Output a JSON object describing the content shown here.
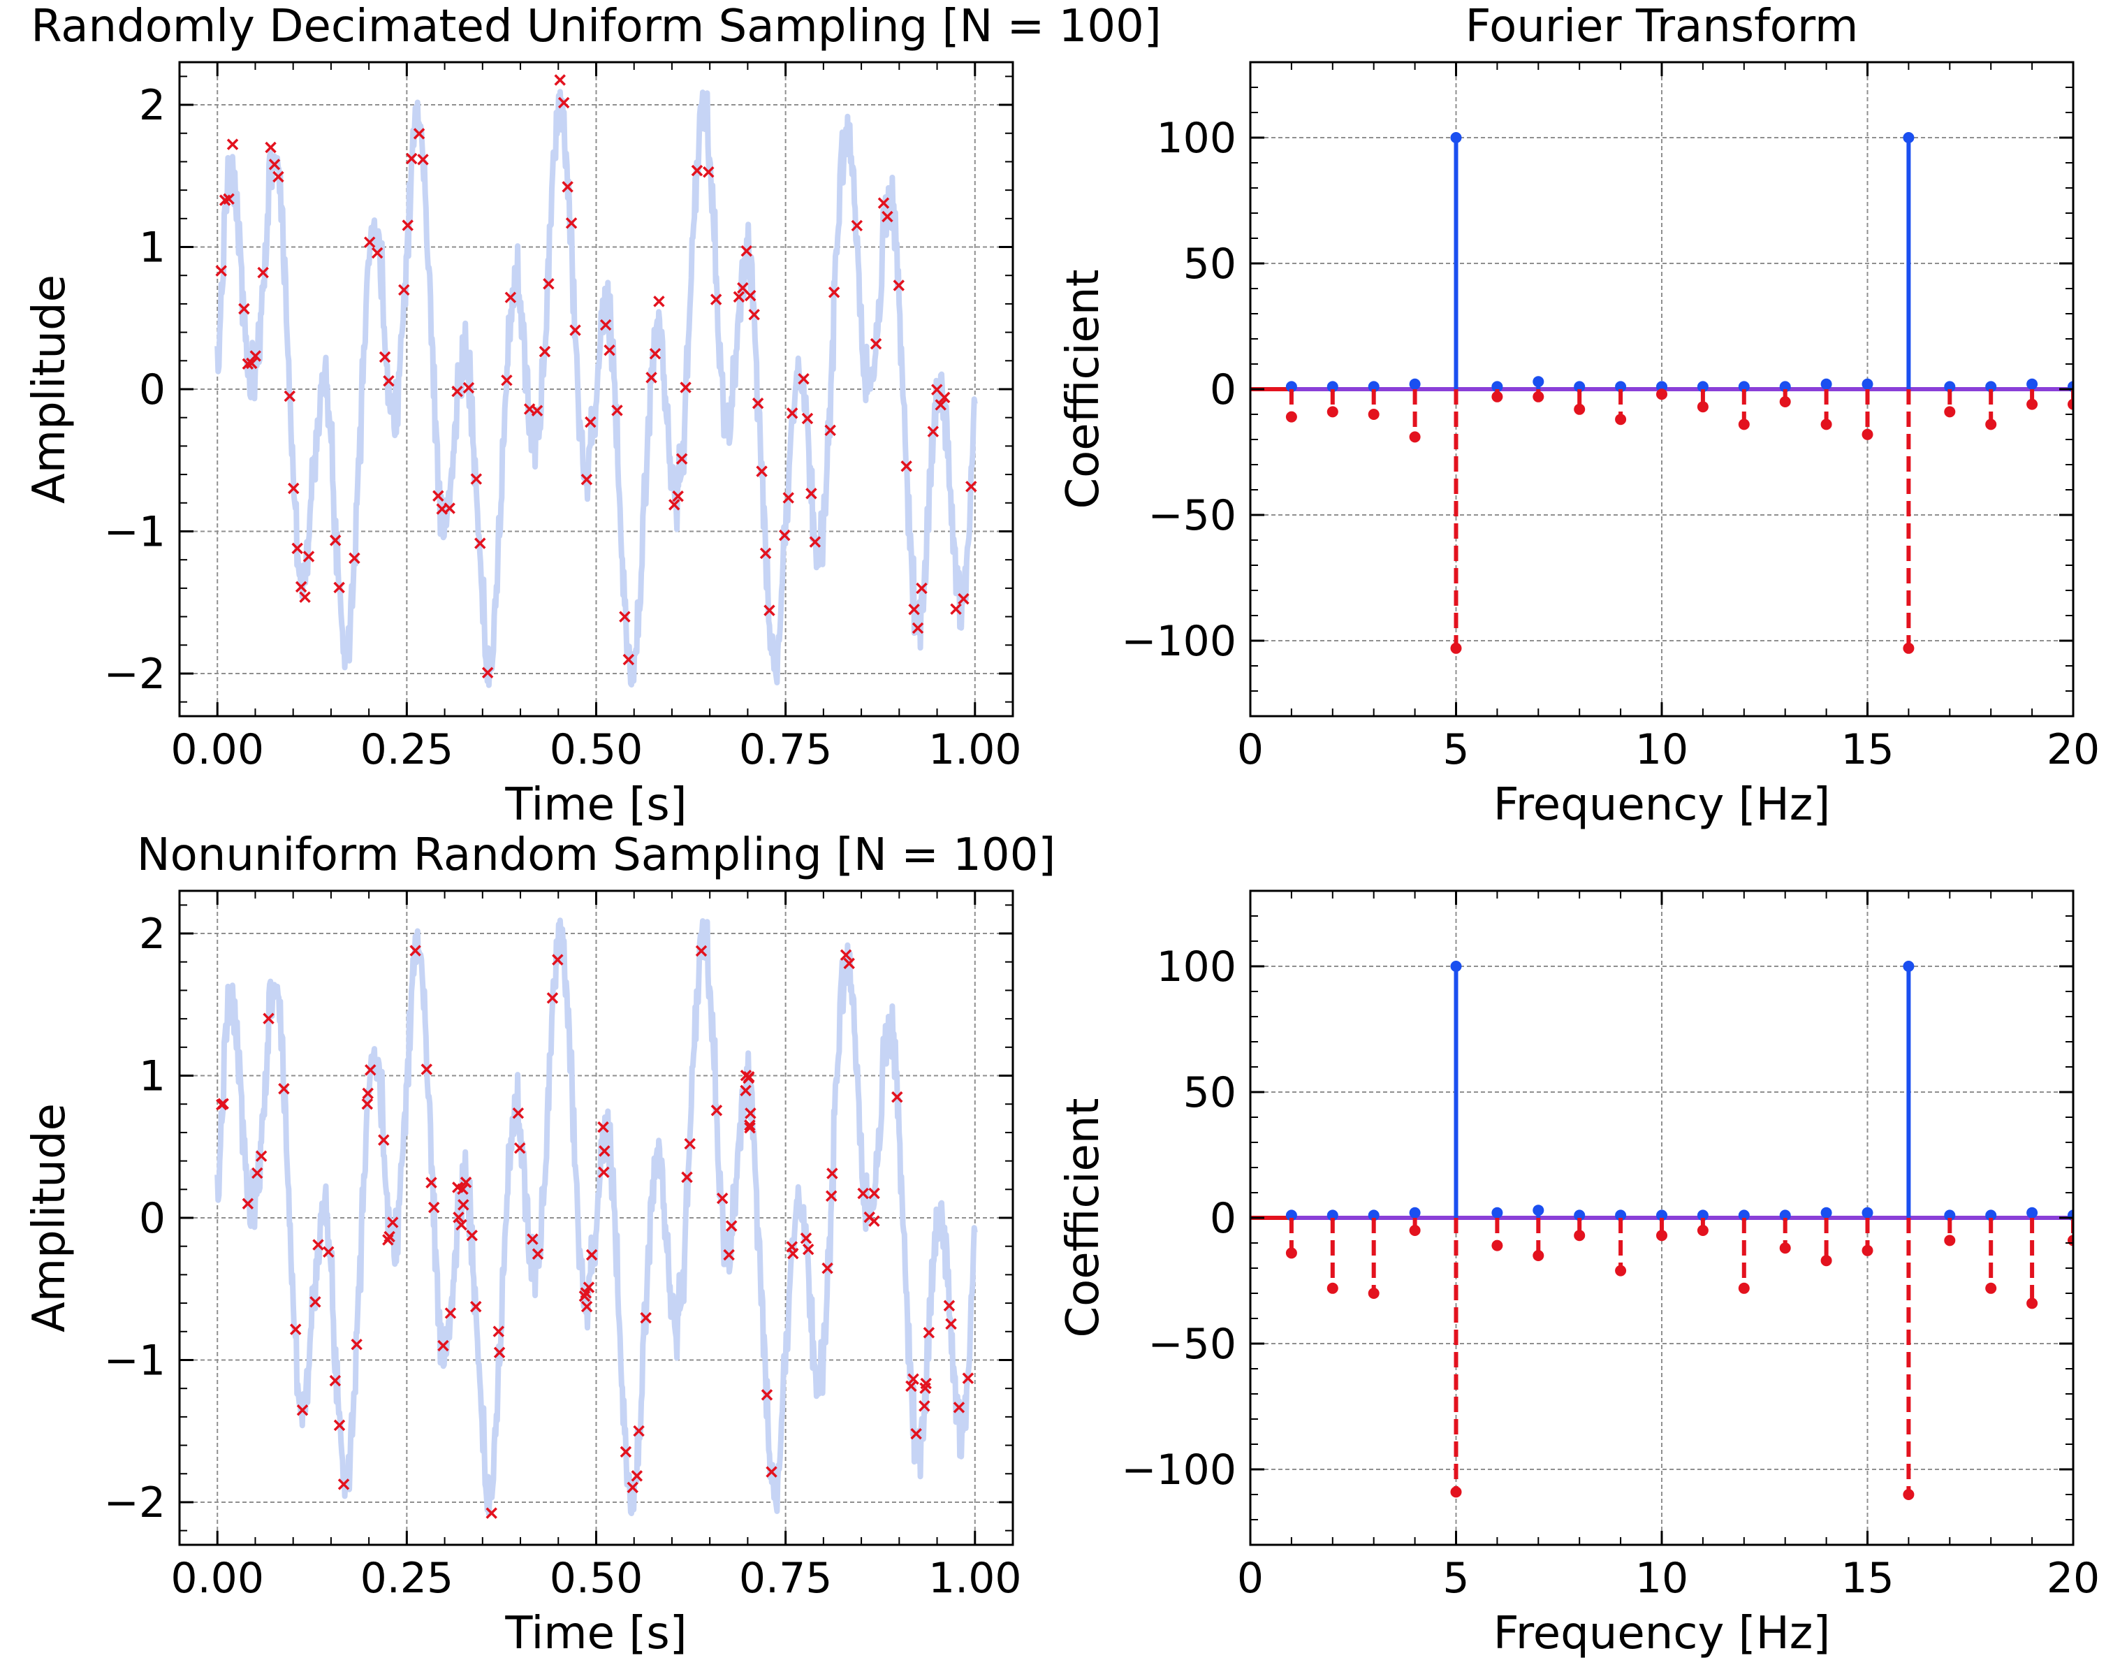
{
  "colors": {
    "signal": "#c6d4f5",
    "samples": "#e3121e",
    "positive_stem": "#1a4ff0",
    "negative_stem": "#e3121e",
    "baseline": "#8a3fd8",
    "grid": "#8f8f8f"
  },
  "chart_data": [
    {
      "type": "line",
      "title": "Randomly Decimated Uniform Sampling [N = 100]",
      "xlabel": "Time [s]",
      "ylabel": "Amplitude",
      "xlim": [
        -0.05,
        1.05
      ],
      "ylim": [
        -2.3,
        2.3
      ],
      "xticks": [
        0,
        0.25,
        0.5,
        0.75,
        1
      ],
      "xticklabels": [
        "0.00",
        "0.25",
        "0.50",
        "0.75",
        "1.00"
      ],
      "yticks": [
        -2,
        -1,
        0,
        1,
        2
      ],
      "yticklabels": [
        "−2",
        "−1",
        "0",
        "1",
        "2"
      ],
      "grid": true,
      "series": [
        {
          "kind": "curve",
          "color": "#c6d4f5",
          "signal": {
            "terms": [
              {
                "amp": 1,
                "freq": 5
              },
              {
                "amp": 1,
                "freq": 16
              }
            ],
            "noise_sd": 0.11,
            "seed": 7,
            "n": 1000,
            "xrange": [
              0,
              1
            ]
          }
        },
        {
          "kind": "markers",
          "marker": "x",
          "color": "#e3121e",
          "n_samples": 100,
          "seed": 41,
          "mode": "decimated",
          "noise_sd": 0.07
        }
      ]
    },
    {
      "type": "stem",
      "title": "Fourier Transform",
      "xlabel": "Frequency [Hz]",
      "ylabel": "Coefficient",
      "xlim": [
        0,
        20
      ],
      "ylim": [
        -130,
        130
      ],
      "xticks": [
        0,
        5,
        10,
        15,
        20
      ],
      "xticklabels": [
        "0",
        "5",
        "10",
        "15",
        "20"
      ],
      "yticks": [
        -100,
        -50,
        0,
        50,
        100
      ],
      "yticklabels": [
        "−100",
        "−50",
        "0",
        "50",
        "100"
      ],
      "grid": true,
      "series": [
        {
          "kind": "stem",
          "color": "#1a4ff0",
          "style": "solid",
          "x": [
            1,
            2,
            3,
            4,
            5,
            6,
            7,
            8,
            9,
            10,
            11,
            12,
            13,
            14,
            15,
            16,
            17,
            18,
            19,
            20
          ],
          "values": [
            1,
            1,
            1,
            2,
            100,
            1,
            3,
            1,
            1,
            1,
            1,
            1,
            1,
            2,
            2,
            100,
            1,
            1,
            2,
            1
          ]
        },
        {
          "kind": "stem",
          "color": "#e3121e",
          "style": "dashed",
          "x": [
            1,
            2,
            3,
            4,
            5,
            6,
            7,
            8,
            9,
            10,
            11,
            12,
            13,
            14,
            15,
            16,
            17,
            18,
            19,
            20
          ],
          "values": [
            -11,
            -9,
            -10,
            -19,
            -103,
            -3,
            -3,
            -8,
            -12,
            -2,
            -7,
            -14,
            -5,
            -14,
            -18,
            -103,
            -9,
            -14,
            -6,
            -6
          ]
        }
      ]
    },
    {
      "type": "line",
      "title": "Nonuniform Random Sampling [N = 100]",
      "xlabel": "Time [s]",
      "ylabel": "Amplitude",
      "xlim": [
        -0.05,
        1.05
      ],
      "ylim": [
        -2.3,
        2.3
      ],
      "xticks": [
        0,
        0.25,
        0.5,
        0.75,
        1
      ],
      "xticklabels": [
        "0.00",
        "0.25",
        "0.50",
        "0.75",
        "1.00"
      ],
      "yticks": [
        -2,
        -1,
        0,
        1,
        2
      ],
      "yticklabels": [
        "−2",
        "−1",
        "0",
        "1",
        "2"
      ],
      "grid": true,
      "series": [
        {
          "kind": "curve",
          "color": "#c6d4f5",
          "signal": {
            "terms": [
              {
                "amp": 1,
                "freq": 5
              },
              {
                "amp": 1,
                "freq": 16
              }
            ],
            "noise_sd": 0.11,
            "seed": 7,
            "n": 1000,
            "xrange": [
              0,
              1
            ]
          }
        },
        {
          "kind": "markers",
          "marker": "x",
          "color": "#e3121e",
          "n_samples": 100,
          "seed": 97,
          "mode": "random",
          "noise_sd": 0.07
        }
      ]
    },
    {
      "type": "stem",
      "title": "",
      "xlabel": "Frequency [Hz]",
      "ylabel": "Coefficient",
      "xlim": [
        0,
        20
      ],
      "ylim": [
        -130,
        130
      ],
      "xticks": [
        0,
        5,
        10,
        15,
        20
      ],
      "xticklabels": [
        "0",
        "5",
        "10",
        "15",
        "20"
      ],
      "yticks": [
        -100,
        -50,
        0,
        50,
        100
      ],
      "yticklabels": [
        "−100",
        "−50",
        "0",
        "50",
        "100"
      ],
      "grid": true,
      "series": [
        {
          "kind": "stem",
          "color": "#1a4ff0",
          "style": "solid",
          "x": [
            1,
            2,
            3,
            4,
            5,
            6,
            7,
            8,
            9,
            10,
            11,
            12,
            13,
            14,
            15,
            16,
            17,
            18,
            19,
            20
          ],
          "values": [
            1,
            1,
            1,
            2,
            100,
            2,
            3,
            1,
            1,
            1,
            1,
            1,
            1,
            2,
            2,
            100,
            1,
            1,
            2,
            1
          ]
        },
        {
          "kind": "stem",
          "color": "#e3121e",
          "style": "dashed",
          "x": [
            1,
            2,
            3,
            4,
            5,
            6,
            7,
            8,
            9,
            10,
            11,
            12,
            13,
            14,
            15,
            16,
            17,
            18,
            19,
            20
          ],
          "values": [
            -14,
            -28,
            -30,
            -5,
            -109,
            -11,
            -15,
            -7,
            -21,
            -7,
            -5,
            -28,
            -12,
            -17,
            -13,
            -110,
            -9,
            -28,
            -34,
            -9
          ]
        }
      ]
    }
  ]
}
